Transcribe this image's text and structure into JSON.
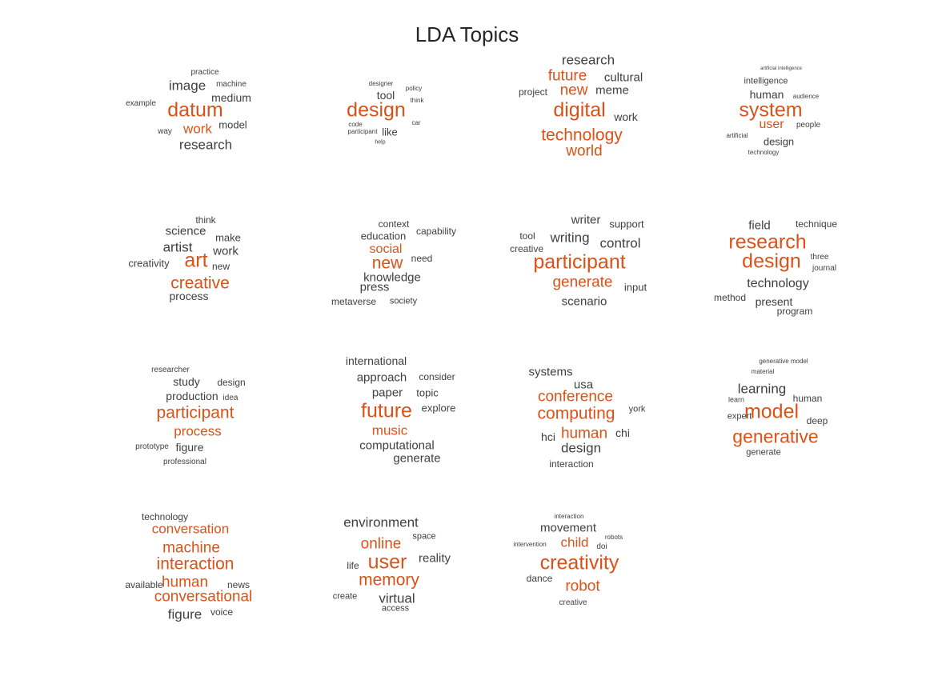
{
  "colors": {
    "highlight": "#d95319",
    "regular": "#404040"
  },
  "chart_data": {
    "type": "wordcloud",
    "title": "LDA Topics",
    "topics": [
      {
        "words": [
          {
            "text": "datum",
            "weight": 1.0,
            "highlight": true
          },
          {
            "text": "work",
            "weight": 0.55,
            "highlight": true
          },
          {
            "text": "image",
            "weight": 0.62,
            "highlight": false
          },
          {
            "text": "research",
            "weight": 0.58,
            "highlight": false
          },
          {
            "text": "medium",
            "weight": 0.45,
            "highlight": false
          },
          {
            "text": "model",
            "weight": 0.42,
            "highlight": false
          },
          {
            "text": "practice",
            "weight": 0.25,
            "highlight": false
          },
          {
            "text": "machine",
            "weight": 0.25,
            "highlight": false
          },
          {
            "text": "example",
            "weight": 0.25,
            "highlight": false
          },
          {
            "text": "way",
            "weight": 0.25,
            "highlight": false
          }
        ]
      },
      {
        "words": [
          {
            "text": "design",
            "weight": 1.0,
            "highlight": true
          },
          {
            "text": "tool",
            "weight": 0.45,
            "highlight": false
          },
          {
            "text": "like",
            "weight": 0.4,
            "highlight": false
          },
          {
            "text": "designer",
            "weight": 0.2,
            "highlight": false
          },
          {
            "text": "policy",
            "weight": 0.2,
            "highlight": false
          },
          {
            "text": "think",
            "weight": 0.18,
            "highlight": false
          },
          {
            "text": "code",
            "weight": 0.2,
            "highlight": false
          },
          {
            "text": "participant",
            "weight": 0.2,
            "highlight": false
          },
          {
            "text": "car",
            "weight": 0.18,
            "highlight": false
          },
          {
            "text": "help",
            "weight": 0.15,
            "highlight": false
          }
        ]
      },
      {
        "words": [
          {
            "text": "digital",
            "weight": 1.0,
            "highlight": true
          },
          {
            "text": "technology",
            "weight": 0.85,
            "highlight": true
          },
          {
            "text": "future",
            "weight": 0.7,
            "highlight": true
          },
          {
            "text": "world",
            "weight": 0.7,
            "highlight": true
          },
          {
            "text": "new",
            "weight": 0.65,
            "highlight": true
          },
          {
            "text": "research",
            "weight": 0.6,
            "highlight": false
          },
          {
            "text": "cultural",
            "weight": 0.5,
            "highlight": false
          },
          {
            "text": "meme",
            "weight": 0.5,
            "highlight": false
          },
          {
            "text": "work",
            "weight": 0.45,
            "highlight": false
          },
          {
            "text": "project",
            "weight": 0.35,
            "highlight": false
          }
        ]
      },
      {
        "words": [
          {
            "text": "system",
            "weight": 1.0,
            "highlight": true
          },
          {
            "text": "user",
            "weight": 0.65,
            "highlight": true
          },
          {
            "text": "human",
            "weight": 0.5,
            "highlight": false
          },
          {
            "text": "design",
            "weight": 0.45,
            "highlight": false
          },
          {
            "text": "intelligence",
            "weight": 0.35,
            "highlight": false
          },
          {
            "text": "people",
            "weight": 0.35,
            "highlight": false
          },
          {
            "text": "audience",
            "weight": 0.3,
            "highlight": false
          },
          {
            "text": "artificial",
            "weight": 0.3,
            "highlight": false
          },
          {
            "text": "technology",
            "weight": 0.3,
            "highlight": false
          },
          {
            "text": "artificial intelligence",
            "weight": 0.2,
            "highlight": false
          }
        ]
      },
      {
        "words": [
          {
            "text": "art",
            "weight": 1.0,
            "highlight": true
          },
          {
            "text": "creative",
            "weight": 0.9,
            "highlight": true
          },
          {
            "text": "artist",
            "weight": 0.65,
            "highlight": false
          },
          {
            "text": "science",
            "weight": 0.6,
            "highlight": false
          },
          {
            "text": "work",
            "weight": 0.55,
            "highlight": false
          },
          {
            "text": "make",
            "weight": 0.45,
            "highlight": false
          },
          {
            "text": "process",
            "weight": 0.5,
            "highlight": false
          },
          {
            "text": "creativity",
            "weight": 0.45,
            "highlight": false
          },
          {
            "text": "think",
            "weight": 0.4,
            "highlight": false
          },
          {
            "text": "new",
            "weight": 0.4,
            "highlight": false
          }
        ]
      },
      {
        "words": [
          {
            "text": "new",
            "weight": 1.0,
            "highlight": true
          },
          {
            "text": "social",
            "weight": 0.8,
            "highlight": true
          },
          {
            "text": "knowledge",
            "weight": 0.75,
            "highlight": false
          },
          {
            "text": "press",
            "weight": 0.7,
            "highlight": false
          },
          {
            "text": "education",
            "weight": 0.6,
            "highlight": false
          },
          {
            "text": "context",
            "weight": 0.5,
            "highlight": false
          },
          {
            "text": "capability",
            "weight": 0.5,
            "highlight": false
          },
          {
            "text": "need",
            "weight": 0.5,
            "highlight": false
          },
          {
            "text": "metaverse",
            "weight": 0.45,
            "highlight": false
          },
          {
            "text": "society",
            "weight": 0.45,
            "highlight": false
          }
        ]
      },
      {
        "words": [
          {
            "text": "participant",
            "weight": 1.0,
            "highlight": true
          },
          {
            "text": "generate",
            "weight": 0.75,
            "highlight": true
          },
          {
            "text": "writing",
            "weight": 0.65,
            "highlight": false
          },
          {
            "text": "control",
            "weight": 0.65,
            "highlight": false
          },
          {
            "text": "scenario",
            "weight": 0.6,
            "highlight": false
          },
          {
            "text": "writer",
            "weight": 0.55,
            "highlight": false
          },
          {
            "text": "support",
            "weight": 0.5,
            "highlight": false
          },
          {
            "text": "tool",
            "weight": 0.45,
            "highlight": false
          },
          {
            "text": "creative",
            "weight": 0.45,
            "highlight": false
          },
          {
            "text": "input",
            "weight": 0.45,
            "highlight": false
          }
        ]
      },
      {
        "words": [
          {
            "text": "research",
            "weight": 1.0,
            "highlight": true
          },
          {
            "text": "design",
            "weight": 1.0,
            "highlight": true
          },
          {
            "text": "technology",
            "weight": 0.6,
            "highlight": false
          },
          {
            "text": "field",
            "weight": 0.55,
            "highlight": false
          },
          {
            "text": "present",
            "weight": 0.5,
            "highlight": false
          },
          {
            "text": "technique",
            "weight": 0.45,
            "highlight": false
          },
          {
            "text": "method",
            "weight": 0.45,
            "highlight": false
          },
          {
            "text": "program",
            "weight": 0.45,
            "highlight": false
          },
          {
            "text": "three",
            "weight": 0.35,
            "highlight": false
          },
          {
            "text": "journal",
            "weight": 0.35,
            "highlight": false
          }
        ]
      },
      {
        "words": [
          {
            "text": "participant",
            "weight": 1.0,
            "highlight": true
          },
          {
            "text": "process",
            "weight": 0.8,
            "highlight": true
          },
          {
            "text": "study",
            "weight": 0.55,
            "highlight": false
          },
          {
            "text": "production",
            "weight": 0.55,
            "highlight": false
          },
          {
            "text": "figure",
            "weight": 0.55,
            "highlight": false
          },
          {
            "text": "design",
            "weight": 0.45,
            "highlight": false
          },
          {
            "text": "researcher",
            "weight": 0.35,
            "highlight": false
          },
          {
            "text": "idea",
            "weight": 0.35,
            "highlight": false
          },
          {
            "text": "prototype",
            "weight": 0.35,
            "highlight": false
          },
          {
            "text": "professional",
            "weight": 0.35,
            "highlight": false
          }
        ]
      },
      {
        "words": [
          {
            "text": "future",
            "weight": 1.0,
            "highlight": true
          },
          {
            "text": "music",
            "weight": 0.8,
            "highlight": true
          },
          {
            "text": "computational",
            "weight": 0.65,
            "highlight": false
          },
          {
            "text": "approach",
            "weight": 0.65,
            "highlight": false
          },
          {
            "text": "generate",
            "weight": 0.6,
            "highlight": false
          },
          {
            "text": "paper",
            "weight": 0.6,
            "highlight": false
          },
          {
            "text": "international",
            "weight": 0.55,
            "highlight": false
          },
          {
            "text": "explore",
            "weight": 0.5,
            "highlight": false
          },
          {
            "text": "topic",
            "weight": 0.5,
            "highlight": false
          },
          {
            "text": "consider",
            "weight": 0.45,
            "highlight": false
          }
        ]
      },
      {
        "words": [
          {
            "text": "computing",
            "weight": 0.95,
            "highlight": true
          },
          {
            "text": "conference",
            "weight": 0.85,
            "highlight": true
          },
          {
            "text": "human",
            "weight": 0.85,
            "highlight": true
          },
          {
            "text": "design",
            "weight": 0.75,
            "highlight": false
          },
          {
            "text": "usa",
            "weight": 0.7,
            "highlight": false
          },
          {
            "text": "systems",
            "weight": 0.6,
            "highlight": false
          },
          {
            "text": "hci",
            "weight": 0.55,
            "highlight": false
          },
          {
            "text": "chi",
            "weight": 0.55,
            "highlight": false
          },
          {
            "text": "interaction",
            "weight": 0.5,
            "highlight": false
          },
          {
            "text": "york",
            "weight": 0.45,
            "highlight": false
          }
        ]
      },
      {
        "words": [
          {
            "text": "model",
            "weight": 1.0,
            "highlight": true
          },
          {
            "text": "generative",
            "weight": 0.95,
            "highlight": true
          },
          {
            "text": "learning",
            "weight": 0.7,
            "highlight": false
          },
          {
            "text": "human",
            "weight": 0.45,
            "highlight": false
          },
          {
            "text": "deep",
            "weight": 0.45,
            "highlight": false
          },
          {
            "text": "expert",
            "weight": 0.45,
            "highlight": false
          },
          {
            "text": "generate",
            "weight": 0.45,
            "highlight": false
          },
          {
            "text": "learn",
            "weight": 0.3,
            "highlight": false
          },
          {
            "text": "generative model",
            "weight": 0.3,
            "highlight": false
          },
          {
            "text": "material",
            "weight": 0.3,
            "highlight": false
          }
        ]
      },
      {
        "words": [
          {
            "text": "interaction",
            "weight": 0.95,
            "highlight": true
          },
          {
            "text": "conversational",
            "weight": 0.85,
            "highlight": true
          },
          {
            "text": "human",
            "weight": 0.85,
            "highlight": true
          },
          {
            "text": "machine",
            "weight": 0.85,
            "highlight": true
          },
          {
            "text": "conversation",
            "weight": 0.8,
            "highlight": true
          },
          {
            "text": "figure",
            "weight": 0.7,
            "highlight": false
          },
          {
            "text": "technology",
            "weight": 0.45,
            "highlight": false
          },
          {
            "text": "available",
            "weight": 0.45,
            "highlight": false
          },
          {
            "text": "news",
            "weight": 0.45,
            "highlight": false
          },
          {
            "text": "voice",
            "weight": 0.45,
            "highlight": false
          }
        ]
      },
      {
        "words": [
          {
            "text": "user",
            "weight": 1.0,
            "highlight": true
          },
          {
            "text": "memory",
            "weight": 0.85,
            "highlight": true
          },
          {
            "text": "online",
            "weight": 0.8,
            "highlight": true
          },
          {
            "text": "environment",
            "weight": 0.7,
            "highlight": false
          },
          {
            "text": "virtual",
            "weight": 0.7,
            "highlight": false
          },
          {
            "text": "reality",
            "weight": 0.55,
            "highlight": false
          },
          {
            "text": "space",
            "weight": 0.45,
            "highlight": false
          },
          {
            "text": "life",
            "weight": 0.45,
            "highlight": false
          },
          {
            "text": "create",
            "weight": 0.45,
            "highlight": false
          },
          {
            "text": "access",
            "weight": 0.45,
            "highlight": false
          }
        ]
      },
      {
        "words": [
          {
            "text": "creativity",
            "weight": 1.0,
            "highlight": true
          },
          {
            "text": "robot",
            "weight": 0.8,
            "highlight": true
          },
          {
            "text": "child",
            "weight": 0.7,
            "highlight": true
          },
          {
            "text": "movement",
            "weight": 0.6,
            "highlight": false
          },
          {
            "text": "dance",
            "weight": 0.45,
            "highlight": false
          },
          {
            "text": "creative",
            "weight": 0.4,
            "highlight": false
          },
          {
            "text": "doi",
            "weight": 0.35,
            "highlight": false
          },
          {
            "text": "robots",
            "weight": 0.3,
            "highlight": false
          },
          {
            "text": "interaction",
            "weight": 0.3,
            "highlight": false
          },
          {
            "text": "intervention",
            "weight": 0.3,
            "highlight": false
          }
        ]
      }
    ]
  }
}
